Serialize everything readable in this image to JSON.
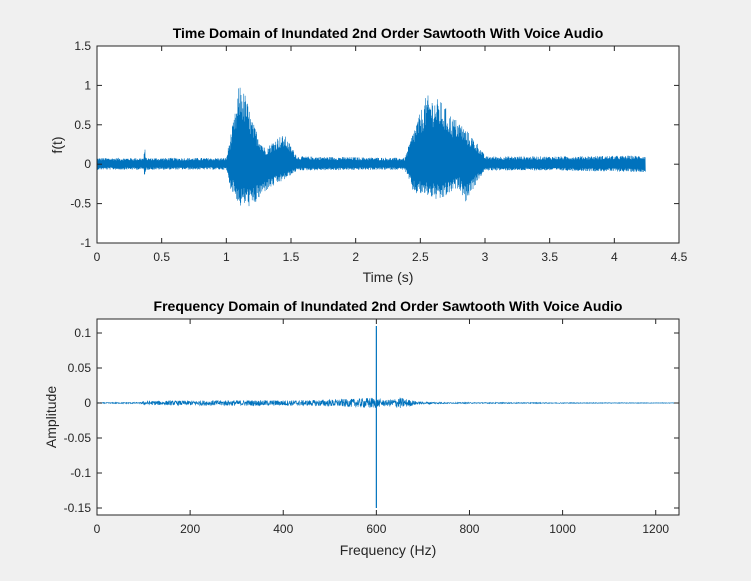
{
  "chart_data": [
    {
      "type": "line",
      "title": "Time Domain of Inundated  2nd Order Sawtooth With Voice Audio",
      "xlabel": "Time (s)",
      "ylabel": "f(t)",
      "xlim": [
        0,
        4.5
      ],
      "ylim": [
        -1,
        1.5
      ],
      "xticks": [
        0,
        0.5,
        1,
        1.5,
        2,
        2.5,
        3,
        3.5,
        4,
        4.5
      ],
      "xtick_labels": [
        "0",
        "0.5",
        "1",
        "1.5",
        "2",
        "2.5",
        "3",
        "3.5",
        "4",
        "4.5"
      ],
      "yticks": [
        -1,
        -0.5,
        0,
        0.5,
        1,
        1.5
      ],
      "ytick_labels": [
        "-1",
        "-0.5",
        "0",
        "0.5",
        "1",
        "1.5"
      ],
      "grid": false,
      "color": "#0072bd",
      "series": [
        {
          "x_range": [
            0,
            4.24
          ],
          "noise_floor": 0.1,
          "envelope_points": [
            {
              "t": 0.0,
              "upper": 0.08,
              "lower": -0.07
            },
            {
              "t": 0.36,
              "upper": 0.08,
              "lower": -0.07
            },
            {
              "t": 0.37,
              "upper": 0.21,
              "lower": -0.18
            },
            {
              "t": 0.38,
              "upper": 0.08,
              "lower": -0.07
            },
            {
              "t": 1.0,
              "upper": 0.08,
              "lower": -0.07
            },
            {
              "t": 1.03,
              "upper": 0.35,
              "lower": -0.3
            },
            {
              "t": 1.08,
              "upper": 0.75,
              "lower": -0.45
            },
            {
              "t": 1.1,
              "upper": 1.03,
              "lower": -0.55
            },
            {
              "t": 1.15,
              "upper": 0.88,
              "lower": -0.52
            },
            {
              "t": 1.2,
              "upper": 0.55,
              "lower": -0.56
            },
            {
              "t": 1.3,
              "upper": 0.2,
              "lower": -0.35
            },
            {
              "t": 1.4,
              "upper": 0.35,
              "lower": -0.25
            },
            {
              "t": 1.45,
              "upper": 0.37,
              "lower": -0.2
            },
            {
              "t": 1.55,
              "upper": 0.1,
              "lower": -0.08
            },
            {
              "t": 2.38,
              "upper": 0.08,
              "lower": -0.07
            },
            {
              "t": 2.45,
              "upper": 0.45,
              "lower": -0.38
            },
            {
              "t": 2.55,
              "upper": 0.88,
              "lower": -0.4
            },
            {
              "t": 2.65,
              "upper": 0.82,
              "lower": -0.48
            },
            {
              "t": 2.75,
              "upper": 0.6,
              "lower": -0.35
            },
            {
              "t": 2.8,
              "upper": 0.55,
              "lower": -0.3
            },
            {
              "t": 2.85,
              "upper": 0.45,
              "lower": -0.48
            },
            {
              "t": 2.95,
              "upper": 0.25,
              "lower": -0.2
            },
            {
              "t": 3.0,
              "upper": 0.1,
              "lower": -0.08
            },
            {
              "t": 3.5,
              "upper": 0.1,
              "lower": -0.08
            },
            {
              "t": 4.24,
              "upper": 0.11,
              "lower": -0.1
            }
          ]
        }
      ]
    },
    {
      "type": "line",
      "title": "Frequency Domain of Inundated  2nd Order Sawtooth With Voice Audio",
      "xlabel": "Frequency (Hz)",
      "ylabel": "Amplitude",
      "xlim": [
        0,
        1250
      ],
      "ylim": [
        -0.16,
        0.12
      ],
      "xticks": [
        0,
        200,
        400,
        600,
        800,
        1000,
        1200
      ],
      "xtick_labels": [
        "0",
        "200",
        "400",
        "600",
        "800",
        "1000",
        "1200"
      ],
      "yticks": [
        -0.15,
        -0.1,
        -0.05,
        0,
        0.05,
        0.1
      ],
      "ytick_labels": [
        "-0.15",
        "-0.1",
        "-0.05",
        "0",
        "0.05",
        "0.1"
      ],
      "grid": false,
      "color": "#0072bd",
      "series": [
        {
          "x_range": [
            0,
            1250
          ],
          "peak_frequency": 600,
          "peak_max": 0.11,
          "peak_min": -0.15,
          "envelope_points": [
            {
              "f": 0,
              "amp": 0.0005
            },
            {
              "f": 95,
              "amp": 0.001
            },
            {
              "f": 100,
              "amp": 0.003
            },
            {
              "f": 300,
              "amp": 0.004
            },
            {
              "f": 450,
              "amp": 0.004
            },
            {
              "f": 550,
              "amp": 0.006
            },
            {
              "f": 590,
              "amp": 0.008
            },
            {
              "f": 620,
              "amp": 0.004
            },
            {
              "f": 650,
              "amp": 0.008
            },
            {
              "f": 690,
              "amp": 0.002
            },
            {
              "f": 750,
              "amp": 0.0008
            },
            {
              "f": 1250,
              "amp": 0.0003
            }
          ]
        }
      ]
    }
  ]
}
